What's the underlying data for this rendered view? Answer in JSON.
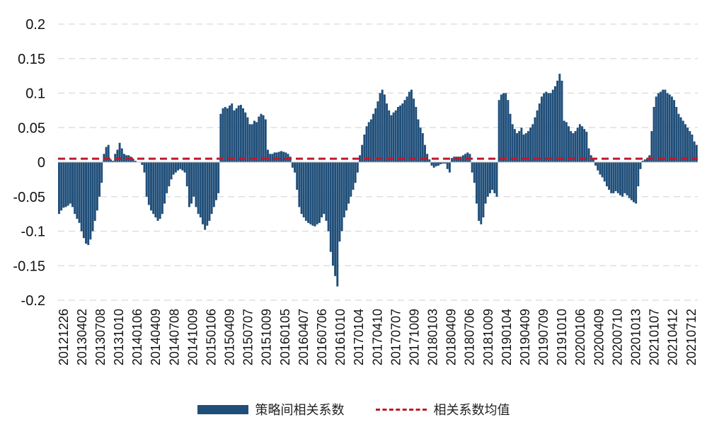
{
  "chart_data": {
    "type": "bar",
    "title": "",
    "xlabel": "",
    "ylabel": "",
    "ylim": [
      -0.2,
      0.2
    ],
    "yticks": [
      0.2,
      0.15,
      0.1,
      0.05,
      0,
      -0.05,
      -0.1,
      -0.15,
      -0.2
    ],
    "ytick_labels": [
      "0.2",
      "0.15",
      "0.1",
      "0.05",
      "0",
      "-0.05",
      "-0.1",
      "-0.15",
      "-0.2"
    ],
    "x_tick_labels": [
      "20121226",
      "20130402",
      "20130708",
      "20131010",
      "20140106",
      "20140409",
      "20140708",
      "20141009",
      "20150106",
      "20150409",
      "20150707",
      "20151009",
      "20160105",
      "20160407",
      "20160706",
      "20161010",
      "20170104",
      "20170410",
      "20170707",
      "20171009",
      "20180103",
      "20180409",
      "20180706",
      "20181009",
      "20190104",
      "20190409",
      "20190709",
      "20191010",
      "20200106",
      "20200409",
      "20200710",
      "20201013",
      "20210107",
      "20210412",
      "20210712"
    ],
    "grid": true,
    "legend_position": "bottom",
    "series": [
      {
        "name": "策略间相关系数",
        "type": "bar",
        "color": "#1f4e79",
        "values": [
          -0.075,
          -0.07,
          -0.066,
          -0.065,
          -0.063,
          -0.06,
          -0.065,
          -0.075,
          -0.082,
          -0.088,
          -0.1,
          -0.11,
          -0.118,
          -0.12,
          -0.112,
          -0.1,
          -0.085,
          -0.07,
          -0.05,
          -0.03,
          0.012,
          0.022,
          0.025,
          0.004,
          0.002,
          0.012,
          0.018,
          0.028,
          0.02,
          0.012,
          0.01,
          0.01,
          0.008,
          0.005,
          0.002,
          0.0,
          0.0,
          -0.004,
          -0.015,
          -0.05,
          -0.062,
          -0.07,
          -0.075,
          -0.08,
          -0.085,
          -0.082,
          -0.075,
          -0.06,
          -0.045,
          -0.035,
          -0.025,
          -0.018,
          -0.015,
          -0.012,
          -0.01,
          -0.012,
          -0.015,
          -0.035,
          -0.065,
          -0.06,
          -0.05,
          -0.065,
          -0.075,
          -0.08,
          -0.09,
          -0.098,
          -0.092,
          -0.085,
          -0.075,
          -0.065,
          -0.055,
          -0.045,
          0.07,
          0.078,
          0.08,
          0.078,
          0.082,
          0.085,
          0.075,
          0.078,
          0.082,
          0.083,
          0.078,
          0.072,
          0.065,
          0.055,
          0.055,
          0.06,
          0.058,
          0.066,
          0.07,
          0.068,
          0.062,
          0.018,
          0.012,
          0.012,
          0.014,
          0.014,
          0.015,
          0.016,
          0.015,
          0.014,
          0.012,
          0.008,
          -0.008,
          -0.015,
          -0.04,
          -0.065,
          -0.075,
          -0.08,
          -0.085,
          -0.088,
          -0.09,
          -0.092,
          -0.093,
          -0.09,
          -0.088,
          -0.08,
          -0.075,
          -0.085,
          -0.1,
          -0.13,
          -0.15,
          -0.165,
          -0.18,
          -0.115,
          -0.1,
          -0.08,
          -0.07,
          -0.06,
          -0.05,
          -0.04,
          -0.03,
          -0.015,
          0.01,
          0.025,
          0.04,
          0.052,
          0.058,
          0.062,
          0.07,
          0.078,
          0.088,
          0.1,
          0.105,
          0.098,
          0.085,
          0.075,
          0.068,
          0.072,
          0.075,
          0.08,
          0.082,
          0.085,
          0.09,
          0.095,
          0.102,
          0.105,
          0.092,
          0.08,
          0.062,
          0.05,
          0.042,
          0.025,
          0.012,
          0.004,
          -0.005,
          -0.008,
          -0.006,
          -0.005,
          -0.003,
          -0.002,
          -0.002,
          -0.01,
          -0.015,
          0.006,
          0.008,
          0.008,
          0.008,
          0.008,
          0.01,
          0.012,
          0.014,
          0.012,
          -0.015,
          -0.03,
          -0.06,
          -0.085,
          -0.09,
          -0.08,
          -0.06,
          -0.05,
          -0.045,
          -0.04,
          -0.045,
          -0.05,
          0.09,
          0.098,
          0.1,
          0.1,
          0.09,
          0.07,
          0.055,
          0.048,
          0.042,
          0.045,
          0.05,
          0.04,
          0.042,
          0.045,
          0.05,
          0.055,
          0.065,
          0.075,
          0.085,
          0.095,
          0.1,
          0.102,
          0.1,
          0.1,
          0.105,
          0.11,
          0.118,
          0.128,
          0.118,
          0.06,
          0.058,
          0.052,
          0.045,
          0.042,
          0.045,
          0.05,
          0.055,
          0.052,
          0.048,
          0.044,
          0.02,
          0.01,
          0.006,
          -0.005,
          -0.012,
          -0.018,
          -0.022,
          -0.028,
          -0.035,
          -0.04,
          -0.045,
          -0.045,
          -0.042,
          -0.045,
          -0.048,
          -0.05,
          -0.045,
          -0.048,
          -0.052,
          -0.055,
          -0.058,
          -0.06,
          -0.035,
          -0.01,
          0.002,
          0.004,
          0.006,
          0.01,
          0.045,
          0.08,
          0.095,
          0.1,
          0.102,
          0.105,
          0.105,
          0.1,
          0.098,
          0.095,
          0.09,
          0.08,
          0.07,
          0.065,
          0.06,
          0.055,
          0.05,
          0.045,
          0.04,
          0.03,
          0.025
        ]
      },
      {
        "name": "相关系数均值",
        "type": "line",
        "style": "dashed",
        "color": "#c0182e",
        "value": 0.005
      }
    ]
  }
}
